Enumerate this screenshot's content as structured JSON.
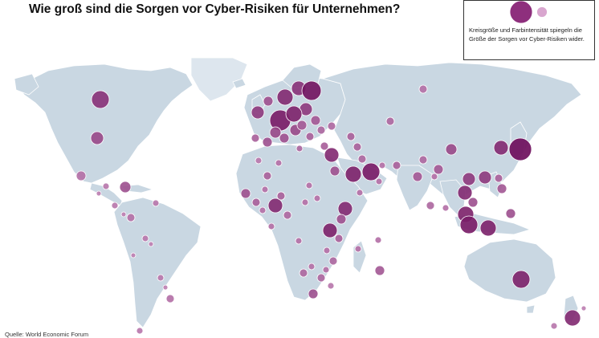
{
  "title": "Wie groß sind die Sorgen vor Cyber-Risiken für Unternehmen?",
  "legend": {
    "text": "Kreisgröße und Farbintensität spiegeln die Größe der Sorgen vor Cyber-Risiken wider."
  },
  "source": "Quelle: World Economic Forum",
  "colors": {
    "land": "#c9d7e2",
    "land_light": "#dde6ee",
    "border": "#ffffff",
    "bubble_low": "#d9a6cf",
    "bubble_high": "#6e0e5c"
  }
}
